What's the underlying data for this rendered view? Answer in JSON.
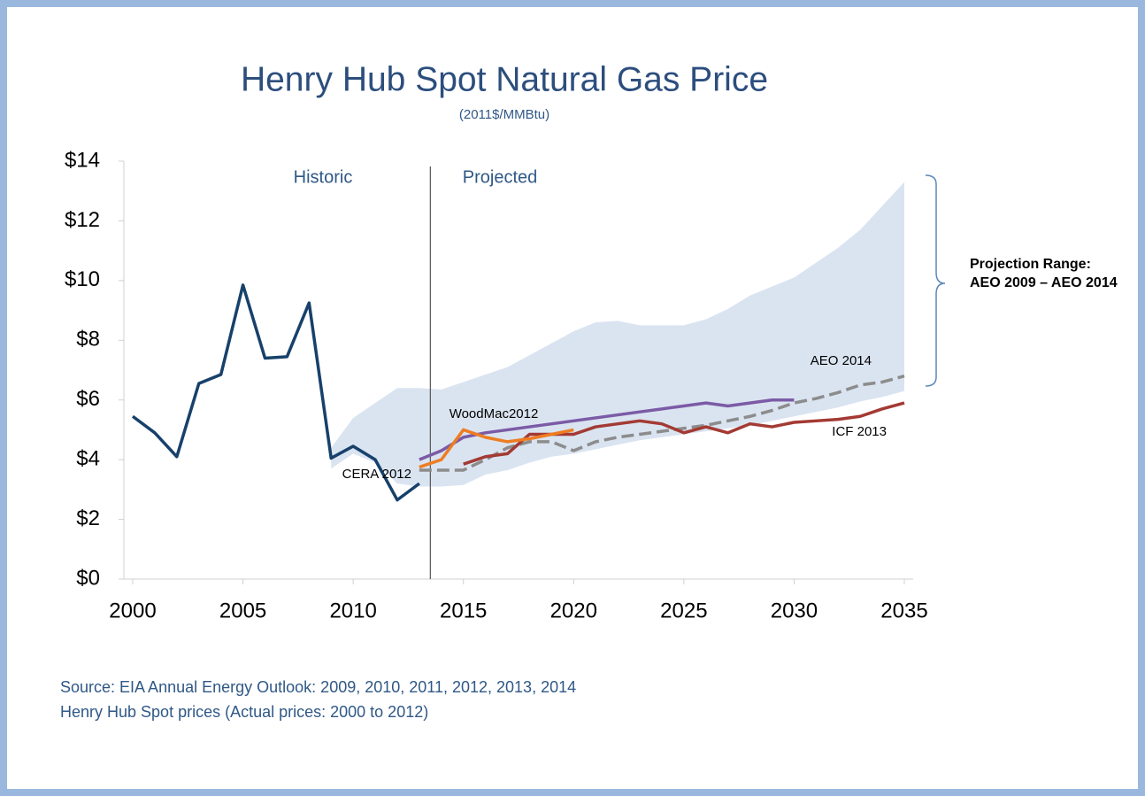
{
  "chart_data": {
    "type": "line",
    "title": "Henry Hub Spot Natural Gas Price",
    "subtitle": "(2011$/MMBtu)",
    "annotations": {
      "historic": "Historic",
      "projected": "Projected",
      "range": "Projection Range: AEO 2009 – AEO 2014"
    },
    "divider_x": 2013.5,
    "source": [
      "Source: EIA Annual Energy Outlook: 2009, 2010, 2011, 2012, 2013, 2014",
      "Henry Hub Spot prices (Actual prices: 2000 to 2012)"
    ],
    "x": [
      2000,
      2001,
      2002,
      2003,
      2004,
      2005,
      2006,
      2007,
      2008,
      2009,
      2010,
      2011,
      2012,
      2013,
      2014,
      2015,
      2016,
      2017,
      2018,
      2019,
      2020,
      2021,
      2022,
      2023,
      2024,
      2025,
      2026,
      2027,
      2028,
      2029,
      2030,
      2031,
      2032,
      2033,
      2034,
      2035
    ],
    "xlim": [
      2000,
      2035
    ],
    "xticks": [
      2000,
      2005,
      2010,
      2015,
      2020,
      2025,
      2030,
      2035
    ],
    "ylim": [
      0,
      14
    ],
    "yticks": [
      {
        "value": 0,
        "label": "$0"
      },
      {
        "value": 2,
        "label": "$2"
      },
      {
        "value": 4,
        "label": "$4"
      },
      {
        "value": 6,
        "label": "$6"
      },
      {
        "value": 8,
        "label": "$8"
      },
      {
        "value": 10,
        "label": "$10"
      },
      {
        "value": 12,
        "label": "$12"
      },
      {
        "value": 14,
        "label": "$14"
      }
    ],
    "band": {
      "color": "#dae4f1",
      "upper": [
        null,
        null,
        null,
        null,
        null,
        null,
        null,
        null,
        null,
        4.4,
        5.4,
        5.9,
        6.4,
        6.4,
        6.35,
        6.6,
        6.85,
        7.1,
        7.5,
        7.9,
        8.3,
        8.6,
        8.65,
        8.5,
        8.5,
        8.5,
        8.7,
        9.05,
        9.5,
        9.8,
        10.1,
        10.6,
        11.1,
        11.7,
        12.5,
        13.3
      ],
      "lower": [
        null,
        null,
        null,
        null,
        null,
        null,
        null,
        null,
        null,
        3.7,
        4.2,
        3.9,
        3.2,
        3.1,
        3.1,
        3.15,
        3.5,
        3.65,
        3.9,
        4.1,
        4.2,
        4.35,
        4.5,
        4.65,
        4.75,
        4.85,
        4.95,
        5.05,
        5.15,
        5.3,
        5.45,
        5.6,
        5.75,
        5.95,
        6.1,
        6.3
      ]
    },
    "series": [
      {
        "color": "#17416b",
        "values": [
          5.45,
          4.9,
          4.1,
          6.55,
          6.85,
          9.85,
          7.4,
          7.45,
          9.25,
          4.05,
          4.45,
          4.0,
          2.65,
          3.2,
          null,
          null,
          null,
          null,
          null,
          null,
          null,
          null,
          null,
          null,
          null,
          null,
          null,
          null,
          null,
          null,
          null,
          null,
          null,
          null,
          null,
          null
        ]
      },
      {
        "name": "CERA 2012",
        "color": "#7b5ba6",
        "values": [
          null,
          null,
          null,
          null,
          null,
          null,
          null,
          null,
          null,
          null,
          null,
          null,
          null,
          4.0,
          4.3,
          4.75,
          4.9,
          5.0,
          5.1,
          5.2,
          5.3,
          5.4,
          5.5,
          5.6,
          5.7,
          5.8,
          5.9,
          5.8,
          5.9,
          6.0,
          6.0,
          null,
          null,
          null,
          null,
          null
        ]
      },
      {
        "name": "AEO 2014",
        "color": "#8c8c8c",
        "dashed": true,
        "values": [
          null,
          null,
          null,
          null,
          null,
          null,
          null,
          null,
          null,
          null,
          null,
          null,
          null,
          3.65,
          3.65,
          3.65,
          4.0,
          4.4,
          4.6,
          4.6,
          4.3,
          4.6,
          4.75,
          4.85,
          4.95,
          5.05,
          5.15,
          5.3,
          5.45,
          5.65,
          5.9,
          6.05,
          6.25,
          6.5,
          6.6,
          6.8
        ]
      },
      {
        "name": "ICF 2013",
        "color": "#a33a33",
        "values": [
          null,
          null,
          null,
          null,
          null,
          null,
          null,
          null,
          null,
          null,
          null,
          null,
          null,
          null,
          null,
          3.85,
          4.1,
          4.2,
          4.85,
          4.85,
          4.85,
          5.1,
          5.2,
          5.3,
          5.2,
          4.9,
          5.1,
          4.9,
          5.2,
          5.1,
          5.25,
          5.3,
          5.35,
          5.45,
          5.7,
          5.9
        ]
      },
      {
        "name": "WoodMac2012",
        "color": "#ee7d22",
        "values": [
          null,
          null,
          null,
          null,
          null,
          null,
          null,
          null,
          null,
          null,
          null,
          null,
          null,
          3.75,
          4.0,
          5.0,
          4.75,
          4.6,
          4.7,
          4.85,
          5.0,
          null,
          null,
          null,
          null,
          null,
          null,
          null,
          null,
          null,
          null,
          null,
          null,
          null,
          null,
          null
        ]
      }
    ]
  }
}
